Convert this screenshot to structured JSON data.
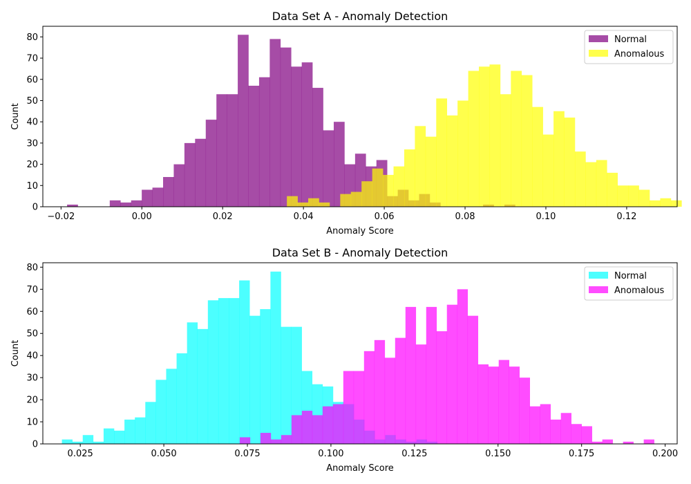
{
  "chart_data": [
    {
      "type": "histogram",
      "title": "Data Set A - Anomaly Detection",
      "xlabel": "Anomaly Score",
      "ylabel": "Count",
      "xlim": [
        -0.0245,
        0.1325
      ],
      "ylim": [
        0,
        85
      ],
      "xticks": [
        -0.02,
        0.0,
        0.02,
        0.04,
        0.06,
        0.08,
        0.1,
        0.12
      ],
      "xtick_labels": [
        "−0.02",
        "0.00",
        "0.02",
        "0.04",
        "0.06",
        "0.08",
        "0.10",
        "0.12"
      ],
      "yticks": [
        0,
        10,
        20,
        30,
        40,
        50,
        60,
        70,
        80
      ],
      "yticks_labels": [
        "0",
        "10",
        "20",
        "30",
        "40",
        "50",
        "60",
        "70",
        "80"
      ],
      "legend": "top-right",
      "series": [
        {
          "name": "Normal",
          "color": "#800080",
          "opacity": 0.7,
          "bin_start": -0.0185,
          "bin_width": 0.00264,
          "counts": [
            1,
            0,
            0,
            0,
            3,
            2,
            3,
            8,
            9,
            14,
            20,
            30,
            32,
            41,
            53,
            53,
            81,
            57,
            61,
            79,
            75,
            66,
            68,
            56,
            36,
            40,
            20,
            25,
            19,
            22,
            5,
            8,
            3,
            6,
            2,
            0,
            0,
            0,
            0,
            1,
            0,
            1
          ]
        },
        {
          "name": "Anomalous",
          "color": "#ffff00",
          "opacity": 0.7,
          "bin_start": 0.0359,
          "bin_width": 0.00264,
          "counts": [
            5,
            2,
            4,
            2,
            0,
            6,
            7,
            12,
            18,
            15,
            19,
            27,
            38,
            33,
            51,
            43,
            50,
            64,
            66,
            67,
            53,
            64,
            62,
            47,
            34,
            45,
            42,
            26,
            21,
            22,
            16,
            10,
            10,
            8,
            3,
            4,
            3,
            0,
            2
          ]
        }
      ]
    },
    {
      "type": "histogram",
      "title": "Data Set B - Anomaly Detection",
      "xlabel": "Anomaly Score",
      "ylabel": "Count",
      "xlim": [
        0.0138,
        0.2036
      ],
      "ylim": [
        0,
        82
      ],
      "xticks": [
        0.025,
        0.05,
        0.075,
        0.1,
        0.125,
        0.15,
        0.175,
        0.2
      ],
      "xtick_labels": [
        "0.025",
        "0.050",
        "0.075",
        "0.100",
        "0.125",
        "0.150",
        "0.175",
        "0.200"
      ],
      "yticks": [
        0,
        10,
        20,
        30,
        40,
        50,
        60,
        70,
        80
      ],
      "yticks_labels": [
        "0",
        "10",
        "20",
        "30",
        "40",
        "50",
        "60",
        "70",
        "80"
      ],
      "legend": "top-right",
      "series": [
        {
          "name": "Normal",
          "color": "#00ffff",
          "opacity": 0.7,
          "bin_start": 0.0195,
          "bin_width": 0.00312,
          "counts": [
            2,
            1,
            4,
            1,
            7,
            6,
            11,
            12,
            19,
            29,
            34,
            41,
            55,
            52,
            65,
            66,
            66,
            74,
            58,
            61,
            78,
            53,
            53,
            33,
            27,
            26,
            19,
            18,
            11,
            6,
            2,
            4,
            2,
            1,
            2,
            1
          ]
        },
        {
          "name": "Anomalous",
          "color": "#ff00ff",
          "opacity": 0.7,
          "bin_start": 0.0727,
          "bin_width": 0.0031,
          "counts": [
            3,
            0,
            5,
            2,
            4,
            13,
            15,
            13,
            17,
            18,
            33,
            33,
            42,
            47,
            39,
            48,
            62,
            45,
            62,
            51,
            63,
            70,
            58,
            36,
            35,
            38,
            35,
            30,
            17,
            18,
            11,
            14,
            9,
            8,
            1,
            2,
            0,
            1,
            0,
            2
          ]
        }
      ]
    }
  ]
}
